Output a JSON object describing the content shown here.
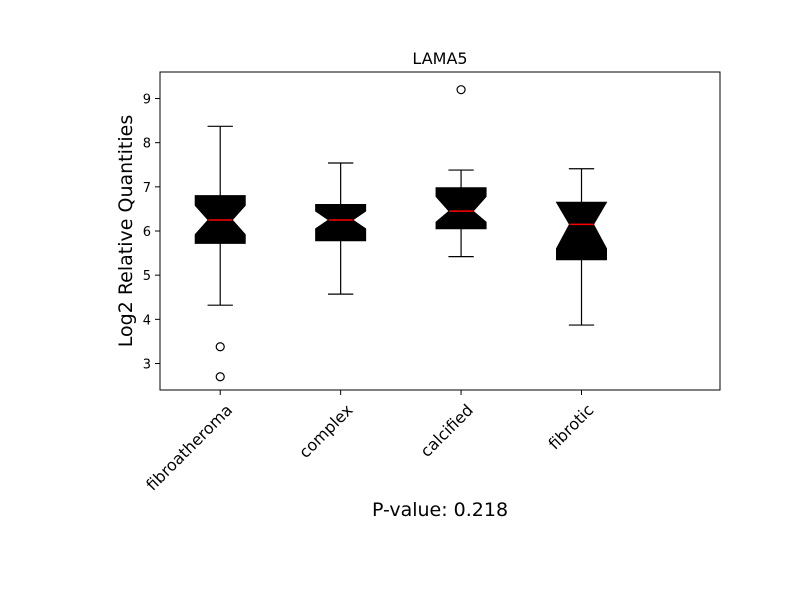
{
  "chart_data": {
    "type": "box",
    "title": "LAMA5",
    "xlabel": "",
    "ylabel": "Log2 Relative Quantities",
    "footnote": "P-value: 0.218",
    "ylim": [
      2.4,
      9.6
    ],
    "yticks": [
      3,
      4,
      5,
      6,
      7,
      8,
      9
    ],
    "notched": true,
    "box_color": "#000000",
    "median_color": "#ff0000",
    "categories": [
      "fibroatheroma",
      "complex",
      "calcified",
      "fibrotic"
    ],
    "series": [
      {
        "category": "fibroatheroma",
        "whisker_low": 4.32,
        "q1": 5.72,
        "median": 6.25,
        "q3": 6.8,
        "whisker_high": 8.37,
        "notch_low": 5.92,
        "notch_high": 6.58,
        "outliers": [
          3.38,
          2.7
        ]
      },
      {
        "category": "complex",
        "whisker_low": 4.57,
        "q1": 5.78,
        "median": 6.25,
        "q3": 6.6,
        "whisker_high": 7.54,
        "notch_low": 6.05,
        "notch_high": 6.45,
        "outliers": []
      },
      {
        "category": "calcified",
        "whisker_low": 5.42,
        "q1": 6.05,
        "median": 6.45,
        "q3": 6.98,
        "whisker_high": 7.38,
        "notch_low": 6.2,
        "notch_high": 6.78,
        "outliers": [
          9.2
        ]
      },
      {
        "category": "fibrotic",
        "whisker_low": 3.87,
        "q1": 5.35,
        "median": 6.15,
        "q3": 6.65,
        "whisker_high": 7.41,
        "notch_low": 5.6,
        "notch_high": 6.68,
        "outliers": []
      }
    ]
  }
}
